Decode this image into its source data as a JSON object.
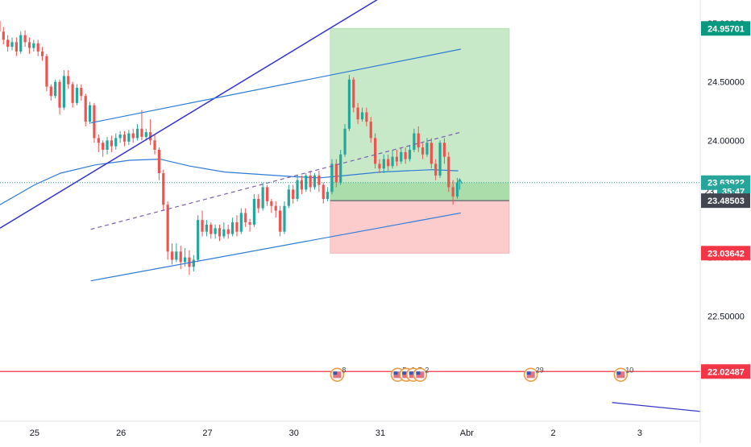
{
  "chart_data": {
    "type": "candlestick",
    "y_axis": {
      "range": [
        21.6,
        25.2
      ],
      "ticks": [
        {
          "value": 22.5,
          "label": "22.50000"
        },
        {
          "value": 23.0,
          "label": "23.00000"
        },
        {
          "value": 23.5,
          "label": "23.50000"
        },
        {
          "value": 24.0,
          "label": "24.00000"
        },
        {
          "value": 24.5,
          "label": "24.50000"
        },
        {
          "value": 25.0,
          "label": "25.00000"
        }
      ]
    },
    "x_axis": {
      "range": [
        -0.4,
        7.7
      ],
      "ticks": [
        {
          "x": 0,
          "label": "25"
        },
        {
          "x": 1,
          "label": "26"
        },
        {
          "x": 2,
          "label": "27"
        },
        {
          "x": 3,
          "label": "30"
        },
        {
          "x": 4,
          "label": "31"
        },
        {
          "x": 5,
          "label": "Abr"
        },
        {
          "x": 6,
          "label": "2"
        },
        {
          "x": 7,
          "label": "3"
        }
      ]
    },
    "price_tags": [
      {
        "name": "take-profit-tag",
        "value": 24.95701,
        "label": "24.95701",
        "color": "#089981",
        "text_color": "#ffffff"
      },
      {
        "name": "current-price-tag",
        "value": 23.63922,
        "label": "23.63922",
        "color": "#26a69a",
        "text_color": "#ffffff"
      },
      {
        "name": "countdown-tag",
        "value": 23.565,
        "label": "35:47",
        "color": "#26a69a",
        "text_color": "#ffffff"
      },
      {
        "name": "entry-price-tag",
        "value": 23.48503,
        "label": "23.48503",
        "color": "#434651",
        "text_color": "#ffffff"
      },
      {
        "name": "stop-loss-tag",
        "value": 23.03642,
        "label": "23.03642",
        "color": "#f23645",
        "text_color": "#ffffff"
      },
      {
        "name": "support-level-tag",
        "value": 22.02487,
        "label": "22.02487",
        "color": "#f23645",
        "text_color": "#ffffff"
      }
    ],
    "partial_price_label": "23.",
    "position": {
      "start_x": 3.42,
      "end_x": 5.49,
      "entry": 23.48503,
      "target": 24.95701,
      "stop": 23.03642
    },
    "current_price": 23.63922,
    "horizontal_level": 22.02487,
    "candles": [
      [
        -0.41,
        25.02,
        24.93,
        25.08,
        24.88
      ],
      [
        -0.36,
        24.93,
        24.86,
        24.97,
        24.82
      ],
      [
        -0.31,
        24.86,
        24.8,
        24.9,
        24.76
      ],
      [
        -0.26,
        24.8,
        24.84,
        24.88,
        24.77
      ],
      [
        -0.21,
        24.84,
        24.76,
        24.88,
        24.72
      ],
      [
        -0.16,
        24.76,
        24.9,
        24.93,
        24.74
      ],
      [
        -0.11,
        24.9,
        24.84,
        24.94,
        24.8
      ],
      [
        -0.06,
        24.84,
        24.79,
        24.88,
        24.74
      ],
      [
        -0.01,
        24.79,
        24.83,
        24.86,
        24.76
      ],
      [
        0.04,
        24.83,
        24.76,
        24.86,
        24.72
      ],
      [
        0.09,
        24.76,
        24.72,
        24.8,
        24.68
      ],
      [
        0.14,
        24.72,
        24.46,
        24.74,
        24.42
      ],
      [
        0.19,
        24.46,
        24.38,
        24.48,
        24.34
      ],
      [
        0.24,
        24.38,
        24.5,
        24.52,
        24.36
      ],
      [
        0.29,
        24.5,
        24.28,
        24.52,
        24.22
      ],
      [
        0.34,
        24.28,
        24.55,
        24.6,
        24.26
      ],
      [
        0.39,
        24.55,
        24.48,
        24.6,
        24.44
      ],
      [
        0.44,
        24.48,
        24.32,
        24.5,
        24.28
      ],
      [
        0.49,
        24.32,
        24.45,
        24.48,
        24.3
      ],
      [
        0.54,
        24.45,
        24.38,
        24.48,
        24.34
      ],
      [
        0.59,
        24.38,
        24.16,
        24.4,
        24.12
      ],
      [
        0.64,
        24.16,
        24.3,
        24.33,
        24.14
      ],
      [
        0.69,
        24.3,
        24.02,
        24.32,
        23.98
      ],
      [
        0.74,
        24.02,
        23.98,
        24.05,
        23.9
      ],
      [
        0.79,
        23.98,
        23.92,
        24.0,
        23.86
      ],
      [
        0.84,
        23.92,
        24.0,
        24.03,
        23.88
      ],
      [
        0.89,
        24.0,
        23.95,
        24.04,
        23.9
      ],
      [
        0.94,
        23.95,
        24.02,
        24.06,
        23.92
      ],
      [
        0.99,
        24.02,
        24.05,
        24.08,
        23.98
      ],
      [
        1.04,
        24.05,
        23.99,
        24.08,
        23.95
      ],
      [
        1.09,
        23.99,
        24.06,
        24.09,
        23.96
      ],
      [
        1.14,
        24.06,
        24.02,
        24.1,
        23.98
      ],
      [
        1.19,
        24.02,
        24.1,
        24.14,
        24.0
      ],
      [
        1.24,
        24.1,
        24.03,
        24.26,
        24.0
      ],
      [
        1.29,
        24.03,
        24.07,
        24.1,
        24.0
      ],
      [
        1.34,
        24.07,
        24.0,
        24.18,
        23.96
      ],
      [
        1.39,
        24.0,
        23.92,
        24.05,
        23.88
      ],
      [
        1.44,
        23.92,
        23.72,
        23.94,
        23.66
      ],
      [
        1.49,
        23.72,
        23.45,
        23.75,
        23.4
      ],
      [
        1.54,
        23.45,
        23.05,
        23.48,
        22.98
      ],
      [
        1.59,
        23.05,
        22.98,
        23.12,
        22.94
      ],
      [
        1.64,
        22.98,
        23.05,
        23.12,
        22.96
      ],
      [
        1.69,
        23.05,
        22.96,
        23.1,
        22.9
      ],
      [
        1.74,
        22.96,
        23.0,
        23.08,
        22.92
      ],
      [
        1.79,
        23.0,
        22.92,
        23.06,
        22.85
      ],
      [
        1.84,
        22.92,
        22.98,
        23.02,
        22.88
      ],
      [
        1.89,
        22.98,
        23.32,
        23.36,
        22.96
      ],
      [
        1.94,
        23.32,
        23.22,
        23.4,
        23.18
      ],
      [
        1.99,
        23.22,
        23.28,
        23.32,
        23.18
      ],
      [
        2.04,
        23.28,
        23.2,
        23.3,
        23.16
      ],
      [
        2.09,
        23.2,
        23.25,
        23.28,
        23.16
      ],
      [
        2.14,
        23.25,
        23.18,
        23.28,
        23.14
      ],
      [
        2.19,
        23.18,
        23.24,
        23.3,
        23.16
      ],
      [
        2.24,
        23.24,
        23.2,
        23.28,
        23.16
      ],
      [
        2.29,
        23.2,
        23.3,
        23.34,
        23.18
      ],
      [
        2.34,
        23.3,
        23.22,
        23.36,
        23.18
      ],
      [
        2.39,
        23.22,
        23.38,
        23.42,
        23.2
      ],
      [
        2.44,
        23.38,
        23.3,
        23.42,
        23.26
      ],
      [
        2.49,
        23.3,
        23.28,
        23.33,
        23.22
      ],
      [
        2.54,
        23.28,
        23.5,
        23.54,
        23.26
      ],
      [
        2.59,
        23.5,
        23.42,
        23.54,
        23.38
      ],
      [
        2.64,
        23.42,
        23.6,
        23.64,
        23.4
      ],
      [
        2.69,
        23.6,
        23.48,
        23.62,
        23.44
      ],
      [
        2.74,
        23.48,
        23.44,
        23.5,
        23.38
      ],
      [
        2.79,
        23.44,
        23.4,
        23.48,
        23.34
      ],
      [
        2.84,
        23.4,
        23.22,
        23.44,
        23.18
      ],
      [
        2.89,
        23.22,
        23.44,
        23.48,
        23.2
      ],
      [
        2.94,
        23.44,
        23.58,
        23.62,
        23.42
      ],
      [
        2.99,
        23.58,
        23.5,
        23.62,
        23.46
      ],
      [
        3.04,
        23.5,
        23.66,
        23.7,
        23.48
      ],
      [
        3.09,
        23.66,
        23.58,
        23.7,
        23.54
      ],
      [
        3.14,
        23.58,
        23.7,
        23.72,
        23.56
      ],
      [
        3.19,
        23.7,
        23.6,
        23.74,
        23.56
      ],
      [
        3.24,
        23.6,
        23.7,
        23.72,
        23.58
      ],
      [
        3.29,
        23.7,
        23.62,
        23.74,
        23.56
      ],
      [
        3.34,
        23.62,
        23.5,
        23.64,
        23.46
      ],
      [
        3.39,
        23.5,
        23.56,
        23.6,
        23.48
      ],
      [
        3.44,
        23.56,
        23.8,
        23.84,
        23.54
      ],
      [
        3.49,
        23.8,
        23.64,
        23.84,
        23.6
      ],
      [
        3.54,
        23.64,
        23.88,
        23.92,
        23.62
      ],
      [
        3.59,
        23.88,
        24.1,
        24.14,
        23.86
      ],
      [
        3.64,
        24.1,
        24.52,
        24.56,
        24.08
      ],
      [
        3.69,
        24.52,
        24.28,
        24.54,
        24.24
      ],
      [
        3.74,
        24.28,
        24.18,
        24.32,
        24.14
      ],
      [
        3.79,
        24.18,
        24.24,
        24.28,
        24.16
      ],
      [
        3.84,
        24.24,
        24.16,
        24.28,
        24.12
      ],
      [
        3.89,
        24.16,
        24.02,
        24.2,
        23.98
      ],
      [
        3.94,
        24.02,
        23.8,
        24.06,
        23.76
      ],
      [
        3.99,
        23.8,
        23.76,
        23.84,
        23.72
      ],
      [
        4.04,
        23.76,
        23.84,
        23.88,
        23.72
      ],
      [
        4.09,
        23.84,
        23.78,
        23.88,
        23.74
      ],
      [
        4.14,
        23.78,
        23.86,
        23.92,
        23.76
      ],
      [
        4.19,
        23.86,
        23.82,
        23.92,
        23.78
      ],
      [
        4.24,
        23.82,
        23.9,
        23.94,
        23.8
      ],
      [
        4.29,
        23.9,
        23.84,
        23.94,
        23.8
      ],
      [
        4.34,
        23.84,
        23.92,
        23.96,
        23.82
      ],
      [
        4.39,
        23.92,
        24.06,
        24.1,
        23.9
      ],
      [
        4.44,
        24.06,
        23.94,
        24.12,
        23.9
      ],
      [
        4.49,
        23.94,
        23.88,
        23.98,
        23.84
      ],
      [
        4.54,
        23.88,
        23.98,
        24.02,
        23.86
      ],
      [
        4.59,
        23.98,
        23.8,
        24.02,
        23.76
      ],
      [
        4.64,
        23.8,
        23.7,
        23.84,
        23.66
      ],
      [
        4.69,
        23.7,
        23.98,
        24.0,
        23.68
      ],
      [
        4.74,
        23.98,
        23.86,
        24.02,
        23.8
      ],
      [
        4.79,
        23.86,
        23.6,
        23.9,
        23.56
      ],
      [
        4.84,
        23.6,
        23.52,
        23.66,
        23.45
      ],
      [
        4.89,
        23.52,
        23.64,
        23.68,
        23.5
      ]
    ],
    "moving_average": [
      [
        -0.4,
        23.45
      ],
      [
        0.0,
        23.62
      ],
      [
        0.3,
        23.72
      ],
      [
        0.7,
        23.79
      ],
      [
        1.1,
        23.83
      ],
      [
        1.45,
        23.84
      ],
      [
        1.8,
        23.78
      ],
      [
        2.2,
        23.73
      ],
      [
        2.6,
        23.71
      ],
      [
        3.0,
        23.69
      ],
      [
        3.3,
        23.68
      ],
      [
        3.6,
        23.7
      ],
      [
        4.0,
        23.73
      ],
      [
        4.3,
        23.74
      ],
      [
        4.6,
        23.75
      ],
      [
        4.9,
        23.74
      ]
    ],
    "trend_lines": [
      {
        "name": "outer-trend-line",
        "color": "#3333cc",
        "width": 1.5,
        "dash": "",
        "arrow": true,
        "from": [
          -0.4,
          23.25
        ],
        "to": [
          5.12,
          25.72
        ]
      },
      {
        "name": "channel-upper-line",
        "color": "#2e7bd6",
        "width": 1.2,
        "dash": "",
        "arrow": false,
        "from": [
          0.65,
          24.15
        ],
        "to": [
          4.93,
          24.78
        ]
      },
      {
        "name": "channel-middle-line",
        "color": "#7a5fa8",
        "width": 1.2,
        "dash": "5,4",
        "arrow": false,
        "from": [
          0.65,
          23.24
        ],
        "to": [
          4.93,
          24.07
        ]
      },
      {
        "name": "channel-lower-line",
        "color": "#2e7bd6",
        "width": 1.2,
        "dash": "",
        "arrow": false,
        "from": [
          0.65,
          22.8
        ],
        "to": [
          4.93,
          23.38
        ]
      },
      {
        "name": "trailing-line",
        "color": "#3333cc",
        "width": 1.2,
        "dash": "",
        "arrow": false,
        "from": [
          6.68,
          21.76
        ],
        "to": [
          7.75,
          21.68
        ]
      }
    ],
    "events": [
      {
        "x": 3.5,
        "label": "8"
      },
      {
        "x": 4.2,
        "label": "5"
      },
      {
        "x": 4.3,
        "label": "3"
      },
      {
        "x": 4.38,
        "label": "7"
      },
      {
        "x": 4.46,
        "label": "2"
      },
      {
        "x": 5.74,
        "label": "29"
      },
      {
        "x": 6.78,
        "label": "10"
      }
    ],
    "colors": {
      "up": "#26a69a",
      "down": "#ef5350",
      "ma": "#2e7bd6",
      "profit_zone": "#c8e9c8",
      "loss_zone": "#fccbcb",
      "level": "#f23645",
      "current": "#26a69a"
    }
  }
}
